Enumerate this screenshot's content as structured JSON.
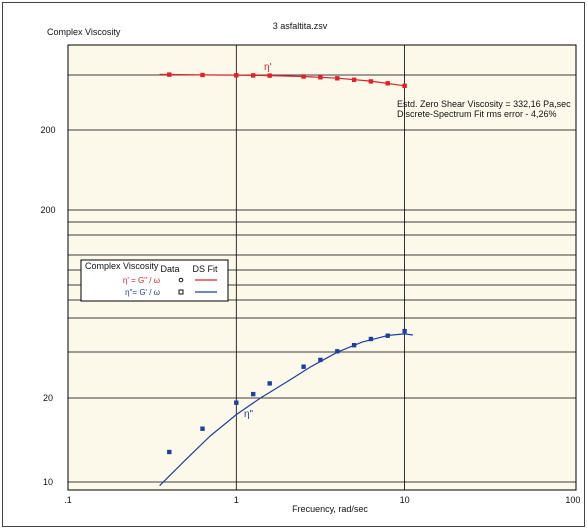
{
  "chart_data": {
    "type": "scatter",
    "title": "3 asfaltita.zsv",
    "ylabel": "Complex Viscosity",
    "xlabel": "Frecuency, rad/sec",
    "x_scale": "log",
    "xlim": [
      0.1,
      100
    ],
    "x_ticks": [
      ".1",
      "1",
      "10",
      "100"
    ],
    "y_tick_labels": [
      "200",
      "200",
      "20",
      "10"
    ],
    "grid": true,
    "colors": {
      "eta_prime": "#e0202a",
      "eta_double_prime": "#1f3fa0",
      "background": "#fdf9ea"
    },
    "series": [
      {
        "name": "η'",
        "points_x": [
          0.4,
          0.63,
          1.0,
          1.26,
          1.58,
          2.51,
          3.16,
          3.98,
          5.01,
          6.31,
          7.94,
          10.0
        ],
        "points_y": [
          343,
          340,
          338,
          337,
          336,
          330,
          325,
          318,
          309,
          299,
          288,
          274
        ],
        "fit_x": [
          0.35,
          0.6,
          1.0,
          1.6,
          2.5,
          4.0,
          6.3,
          10.0
        ],
        "fit_y": [
          344,
          341,
          339,
          336,
          330,
          319,
          301,
          274
        ]
      },
      {
        "name": "η\"",
        "points_x": [
          0.4,
          0.63,
          1.0,
          1.26,
          1.58,
          2.51,
          3.16,
          3.98,
          5.01,
          6.31,
          7.94,
          10.0
        ],
        "points_y": [
          12.8,
          15.5,
          19.2,
          20.6,
          22.5,
          25.8,
          27.3,
          29.3,
          30.8,
          32.4,
          33.3,
          34.6
        ],
        "fit_x": [
          0.35,
          0.5,
          0.7,
          1.0,
          1.4,
          2.0,
          2.8,
          4.0,
          5.6,
          8.0,
          10.0,
          11.2
        ],
        "fit_y": [
          9.7,
          12.0,
          14.6,
          17.4,
          20.0,
          22.8,
          25.9,
          29.1,
          31.6,
          33.4,
          33.8,
          33.5
        ]
      }
    ],
    "series_labels": {
      "eta_prime": "η'",
      "eta_double_prime": "η\""
    },
    "annotations": [
      "Estd. Zero Shear Viscosity = 332,16 Pa,sec",
      "Discrete-Spectrum Fit rms error - 4,26%"
    ],
    "legend": {
      "placement": "left",
      "title": "Complex Viscosity",
      "col_data": "Data",
      "col_fit": "DS Fit",
      "row1_label": "η' = G\" / ω",
      "row2_label": "η\"= G' / ω"
    }
  }
}
